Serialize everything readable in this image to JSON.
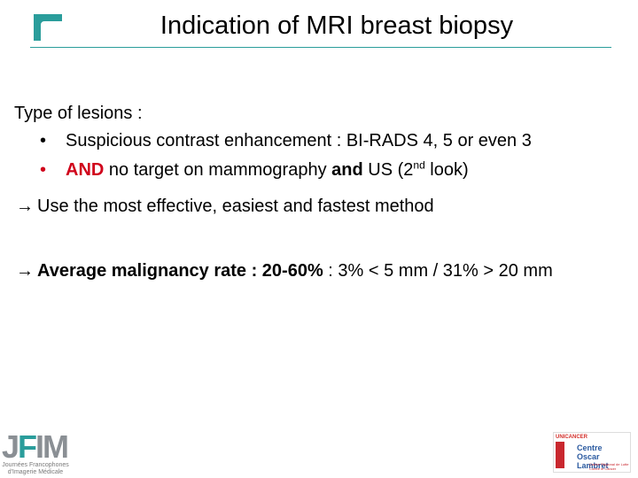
{
  "slide": {
    "title": "Indication of MRI breast biopsy",
    "accent_color": "#2a9d9b"
  },
  "content": {
    "intro": "Type of lesions :",
    "bullet1": {
      "marker": "•",
      "text": "Suspicious contrast enhancement :  BI-RADS 4, 5 or even 3"
    },
    "bullet2": {
      "marker": "•",
      "marker_color": "#d0021b",
      "and_label": "AND",
      "text_a": " no target on mammography ",
      "and_bold": "and",
      "text_b": " US (2",
      "sup": "nd",
      "text_c": " look)"
    },
    "arrow1": {
      "arrow": "→",
      "text": "Use the most effective, easiest and fastest method"
    },
    "arrow2": {
      "arrow": "→",
      "bold": "Average malignancy rate : 20-60%",
      "text": "  : 3% < 5 mm / 31% > 20 mm"
    }
  },
  "logos": {
    "top_icon": "teal-corner-logo-icon",
    "jfim": {
      "letters": "JFIM",
      "subtitle": "Journées Francophones d'Imagerie Médicale"
    },
    "centre": {
      "label_top": "UNICANCER",
      "name_line1": "Centre",
      "name_line2": "Oscar Lambret",
      "subtitle": "Centre Régional de Lutte Contre le Cancer"
    }
  }
}
